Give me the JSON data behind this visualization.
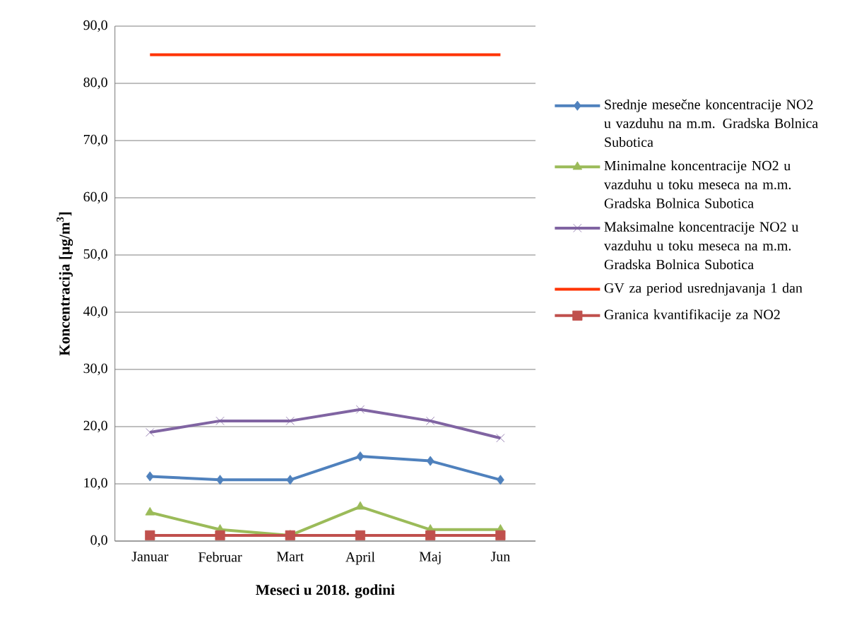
{
  "chart_data": {
    "type": "line",
    "xlabel": "Meseci u 2018. godini",
    "ylabel": "Koncentracija [µg/m$^{3}$]",
    "categories": [
      "Januar",
      "Februar",
      "Mart",
      "April",
      "Maj",
      "Jun"
    ],
    "series": [
      {
        "name": "Srednje mesečne koncentracije NO2 u vazduhu na m.m. Gradska Bolnica Subotica",
        "color": "#4f81bd",
        "marker": "diamond",
        "values": [
          11.3,
          10.7,
          10.7,
          14.8,
          14.0,
          10.7
        ]
      },
      {
        "name": "Minimalne koncentracije NO2 u vazduhu u toku meseca na m.m. Gradska Bolnica Subotica",
        "color": "#9bbb59",
        "marker": "triangle",
        "values": [
          5,
          2,
          1,
          6,
          2,
          2
        ]
      },
      {
        "name": "Maksimalne koncentracije NO2 u vazduhu u toku meseca na m.m. Gradska Bolnica Subotica",
        "color": "#8064a2",
        "marker": "cross",
        "values": [
          19,
          21,
          21,
          23,
          21,
          18
        ]
      },
      {
        "name": "GV za period usrednjavanja 1 dan",
        "color": "#ff3300",
        "marker": "none",
        "values": [
          85,
          85,
          85,
          85,
          85,
          85
        ]
      },
      {
        "name": "Granica kvantifikacije za NO2",
        "color": "#c0504d",
        "marker": "square",
        "values": [
          1,
          1,
          1,
          1,
          1,
          1
        ]
      }
    ],
    "ylim": [
      0,
      90
    ],
    "yticks": [
      {
        "value": 0,
        "label": "0,0"
      },
      {
        "value": 10,
        "label": "10,0"
      },
      {
        "value": 20,
        "label": "20,0"
      },
      {
        "value": 30,
        "label": "30,0"
      },
      {
        "value": 40,
        "label": "40,0"
      },
      {
        "value": 50,
        "label": "50,0"
      },
      {
        "value": 60,
        "label": "60,0"
      },
      {
        "value": 70,
        "label": "70,0"
      },
      {
        "value": 80,
        "label": "80,0"
      },
      {
        "value": 90,
        "label": "90,0"
      }
    ],
    "grid": "y",
    "legend": "right"
  }
}
